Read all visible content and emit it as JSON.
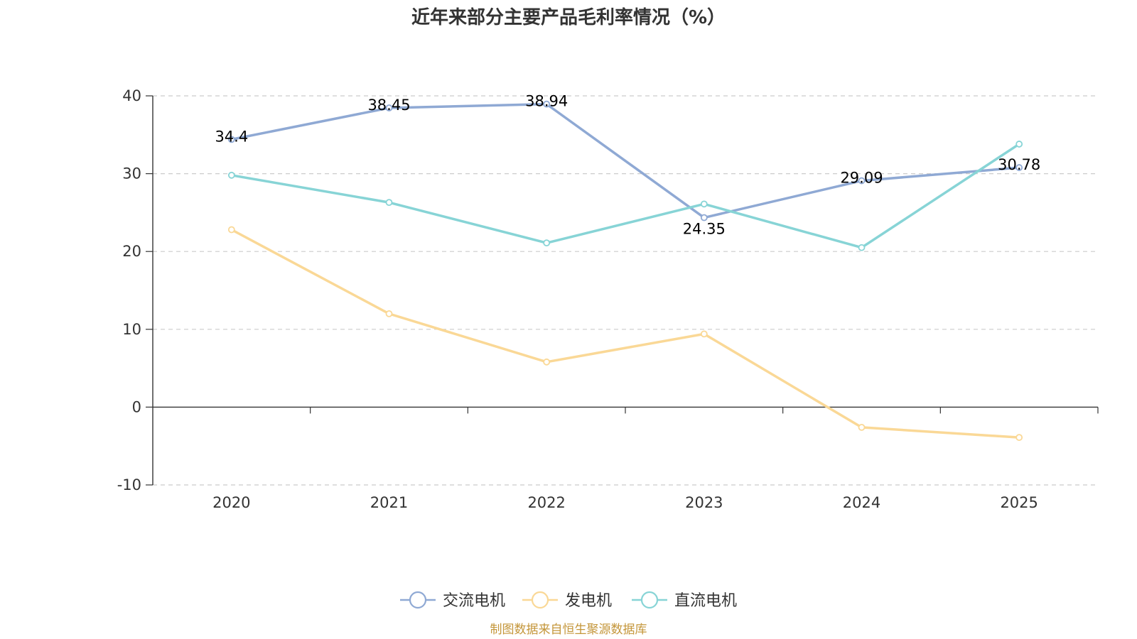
{
  "chart_data": {
    "type": "line",
    "title": "近年来部分主要产品毛利率情况（%）",
    "categories": [
      "2020",
      "2021",
      "2022",
      "2023",
      "2024",
      "2025"
    ],
    "ylim": [
      -10,
      40
    ],
    "yticks": [
      "40",
      "30",
      "20",
      "10",
      "0",
      "-10"
    ],
    "grid": true,
    "legend_position": "bottom",
    "series": [
      {
        "name": "交流电机",
        "color": "#8fa9d4",
        "values": [
          34.4,
          38.45,
          38.94,
          24.35,
          29.09,
          30.78
        ],
        "labels": [
          "34.4",
          "38.45",
          "38.94",
          "24.35",
          "29.09",
          "30.78"
        ]
      },
      {
        "name": "发电机",
        "color": "#fad896",
        "values": [
          22.8,
          12.0,
          5.8,
          9.4,
          -2.6,
          -3.9
        ]
      },
      {
        "name": "直流电机",
        "color": "#87d4d6",
        "values": [
          29.8,
          26.3,
          21.1,
          26.1,
          20.5,
          33.8
        ]
      }
    ]
  },
  "source": "制图数据来自恒生聚源数据库",
  "source_color": "#c4963a"
}
